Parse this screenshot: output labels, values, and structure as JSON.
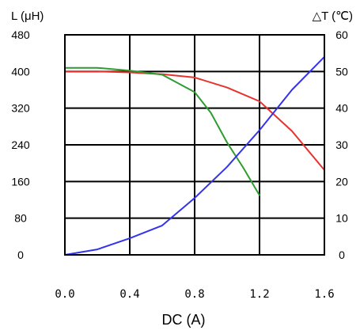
{
  "chart_data": {
    "type": "line",
    "xlabel": "DC (A)",
    "ylabel_left": "L (μH)",
    "ylabel_right": "△T (℃)",
    "xlim": [
      0,
      1.6
    ],
    "ylim_left": [
      0,
      480
    ],
    "ylim_right": [
      0,
      60
    ],
    "x_ticks": [
      "0.0",
      "0.4",
      "0.8",
      "1.2",
      "1.6"
    ],
    "y_left_ticks": [
      "0",
      "80",
      "160",
      "240",
      "320",
      "400",
      "480"
    ],
    "y_right_ticks": [
      "0",
      "10",
      "20",
      "30",
      "40",
      "50",
      "60"
    ],
    "grid": true,
    "series": [
      {
        "axis": "left",
        "color": "#e8322d",
        "points": [
          [
            0,
            400
          ],
          [
            0.2,
            400
          ],
          [
            0.4,
            398
          ],
          [
            0.6,
            394
          ],
          [
            0.8,
            387
          ],
          [
            1.0,
            365
          ],
          [
            1.2,
            335
          ],
          [
            1.4,
            270
          ],
          [
            1.6,
            185
          ]
        ]
      },
      {
        "axis": "left",
        "color": "#2e9c2e",
        "points": [
          [
            0,
            408
          ],
          [
            0.2,
            408
          ],
          [
            0.4,
            402
          ],
          [
            0.6,
            393
          ],
          [
            0.8,
            355
          ],
          [
            0.9,
            310
          ],
          [
            1.0,
            245
          ],
          [
            1.1,
            190
          ],
          [
            1.2,
            130
          ]
        ]
      },
      {
        "axis": "right",
        "color": "#3333ee",
        "points": [
          [
            0,
            0
          ],
          [
            0.2,
            1.5
          ],
          [
            0.4,
            4.5
          ],
          [
            0.6,
            8
          ],
          [
            0.8,
            15.5
          ],
          [
            1.0,
            24
          ],
          [
            1.2,
            34
          ],
          [
            1.4,
            45
          ],
          [
            1.6,
            54
          ]
        ]
      }
    ]
  }
}
